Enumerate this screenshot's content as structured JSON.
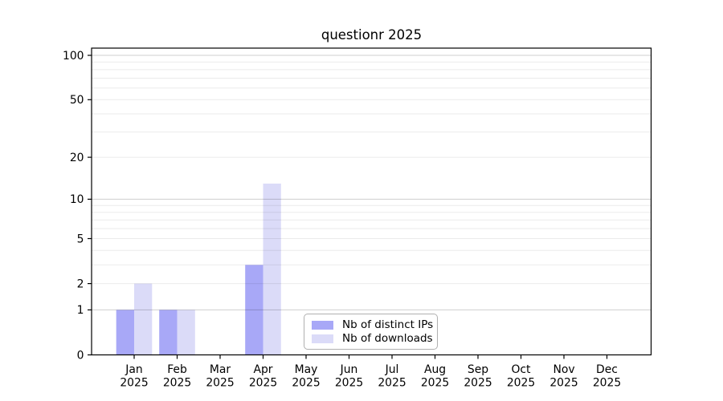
{
  "chart_data": {
    "type": "bar",
    "title": "questionr 2025",
    "categories": [
      "Jan 2025",
      "Feb 2025",
      "Mar 2025",
      "Apr 2025",
      "May 2025",
      "Jun 2025",
      "Jul 2025",
      "Aug 2025",
      "Sep 2025",
      "Oct 2025",
      "Nov 2025",
      "Dec 2025"
    ],
    "series": [
      {
        "name": "Nb of distinct IPs",
        "color": "#a8a8f7",
        "values": [
          1,
          1,
          0,
          3,
          0,
          0,
          0,
          0,
          0,
          0,
          0,
          0
        ]
      },
      {
        "name": "Nb of downloads",
        "color": "#dbdbf8",
        "values": [
          2,
          1,
          0,
          13,
          0,
          0,
          0,
          0,
          0,
          0,
          0,
          0
        ]
      }
    ],
    "y_axis": {
      "scale": "log(1+x)",
      "tick_values": [
        0,
        1,
        2,
        5,
        10,
        20,
        50,
        100
      ],
      "range_top": 113
    },
    "grid": {
      "horizontal": true,
      "major_values": [
        1,
        10,
        100
      ],
      "minor_values": [
        2,
        3,
        4,
        5,
        6,
        7,
        8,
        9,
        20,
        30,
        40,
        50,
        60,
        70,
        80,
        90
      ]
    },
    "legend": {
      "position": "inside-bottom-center",
      "border_color": "#b0b0b0"
    },
    "colors": {
      "axis": "#000000",
      "major_grid": "#cccccc",
      "minor_grid": "#ebebeb",
      "background": "#ffffff"
    }
  }
}
